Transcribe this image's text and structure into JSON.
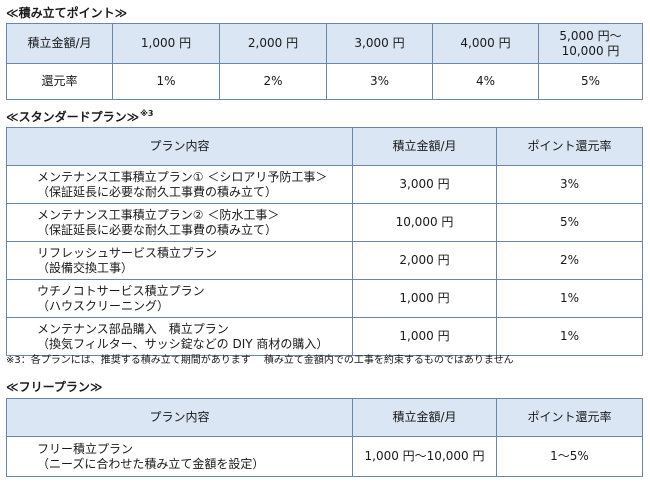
{
  "points": {
    "heading": "≪積み立てポイント≫",
    "row_label_amount": "積立金額/月",
    "row_label_rate": "還元率",
    "columns": [
      {
        "amount": "1,000 円",
        "rate": "1%"
      },
      {
        "amount": "2,000 円",
        "rate": "2%"
      },
      {
        "amount": "3,000 円",
        "rate": "3%"
      },
      {
        "amount": "4,000 円",
        "rate": "4%"
      },
      {
        "amount_line1": "5,000 円〜",
        "amount_line2": "10,000 円",
        "rate": "5%"
      }
    ]
  },
  "standard": {
    "heading": "≪スタンダードプラン≫",
    "heading_sup": "※3",
    "col_plan": "プラン内容",
    "col_amount": "積立金額/月",
    "col_rate": "ポイント還元率",
    "rows": [
      {
        "line1": "メンテナンス工事積立プラン① ＜シロアリ予防工事＞",
        "line2": "（保証延長に必要な耐久工事費の積み立て）",
        "amount": "3,000 円",
        "rate": "3%"
      },
      {
        "line1": "メンテナンス工事積立プラン② ＜防水工事＞",
        "line2": "（保証延長に必要な耐久工事費の積み立て）",
        "amount": "10,000 円",
        "rate": "5%"
      },
      {
        "line1": "リフレッシュサービス積立プラン",
        "line2": "（設備交換工事）",
        "amount": "2,000 円",
        "rate": "2%"
      },
      {
        "line1": "ウチノコトサービス積立プラン",
        "line2": "（ハウスクリーニング）",
        "amount": "1,000 円",
        "rate": "1%"
      },
      {
        "line1": "メンテナンス部品購入　積立プラン",
        "line2": "（換気フィルター、サッシ錠などの DIY 商材の購入）",
        "amount": "1,000 円",
        "rate": "1%"
      }
    ]
  },
  "note": "※3：各プランには、推奨する積み立て期間があります　 積み立て金額内での工事を約束するものではありません",
  "free": {
    "heading": "≪フリープラン≫",
    "col_plan": "プラン内容",
    "col_amount": "積立金額/月",
    "col_rate": "ポイント還元率",
    "rows": [
      {
        "line1": "フリー積立プラン",
        "line2": "（ニーズに合わせた積み立て金額を設定）",
        "amount": "1,000 円〜10,000 円",
        "rate": "1〜5%"
      }
    ]
  }
}
